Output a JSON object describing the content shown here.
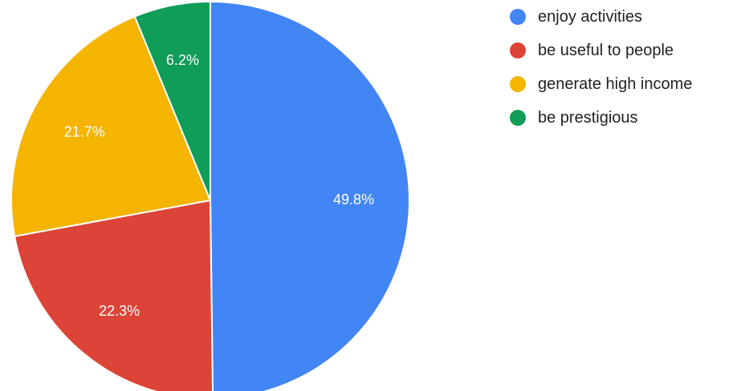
{
  "chart_data": {
    "type": "pie",
    "categories": [
      "enjoy activities",
      "be useful to people",
      "generate high income",
      "be prestigious"
    ],
    "values": [
      49.8,
      22.3,
      21.7,
      6.2
    ],
    "value_labels": [
      "49.8%",
      "22.3%",
      "21.7%",
      "6.2%"
    ],
    "colors": [
      "#4285f4",
      "#db4437",
      "#f4b400",
      "#0f9d58"
    ],
    "start_angle": "12 o'clock",
    "direction": "clockwise",
    "legend": {
      "position": "right",
      "marker": "circle"
    }
  }
}
